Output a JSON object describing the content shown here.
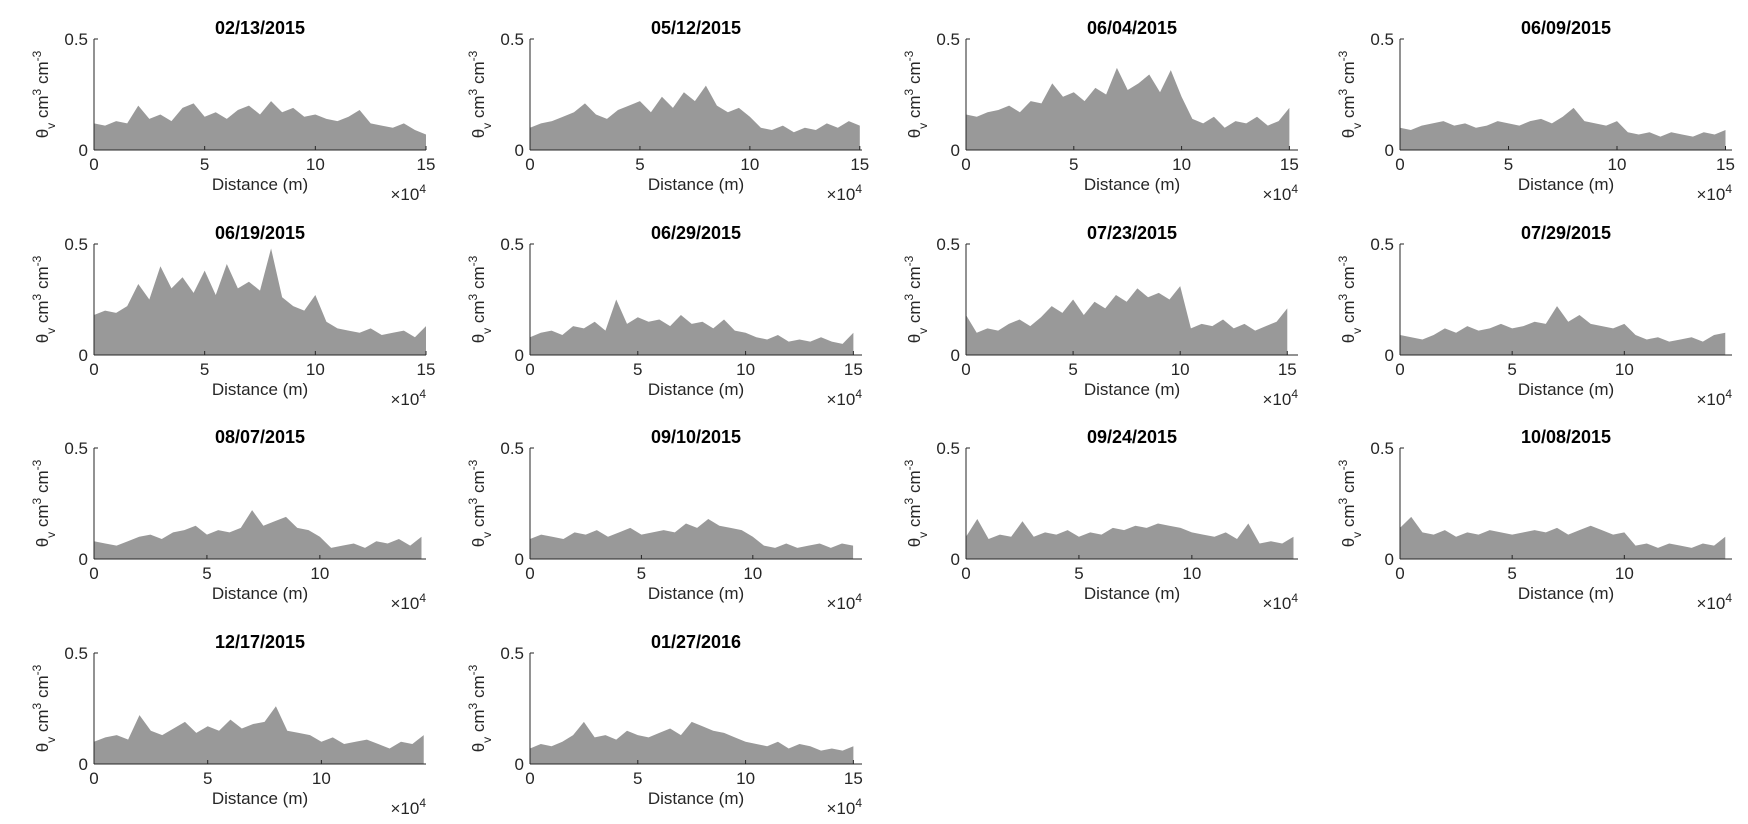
{
  "chart_data": [
    {
      "type": "area",
      "title": "02/13/2015",
      "xlabel": "Distance (m)",
      "ylabel": "θ_v cm^3 cm^{-3}",
      "xaxis_multiplier": "×10^4",
      "color": "#999999",
      "x": [
        0,
        0.5,
        1,
        1.5,
        2,
        2.5,
        3,
        3.5,
        4,
        4.5,
        5,
        5.5,
        6,
        6.5,
        7,
        7.5,
        8,
        8.5,
        9,
        9.5,
        10,
        10.5,
        11,
        11.5,
        12,
        12.5,
        13,
        13.5,
        14,
        14.5,
        15
      ],
      "values": [
        0.12,
        0.11,
        0.13,
        0.12,
        0.2,
        0.14,
        0.16,
        0.13,
        0.19,
        0.21,
        0.15,
        0.17,
        0.14,
        0.18,
        0.2,
        0.16,
        0.22,
        0.17,
        0.19,
        0.15,
        0.16,
        0.14,
        0.13,
        0.15,
        0.18,
        0.12,
        0.11,
        0.1,
        0.12,
        0.09,
        0.07
      ],
      "xlim": [
        0,
        15
      ],
      "xticks": [
        0,
        5,
        10,
        15
      ],
      "ylim": [
        0,
        0.5
      ],
      "yticks": [
        0,
        0.5
      ]
    },
    {
      "type": "area",
      "title": "05/12/2015",
      "xlabel": "Distance (m)",
      "ylabel": "θ_v cm^3 cm^{-3}",
      "xaxis_multiplier": "×10^4",
      "color": "#999999",
      "x": [
        0,
        0.5,
        1,
        1.5,
        2,
        2.5,
        3,
        3.5,
        4,
        4.5,
        5,
        5.5,
        6,
        6.5,
        7,
        7.5,
        8,
        8.5,
        9,
        9.5,
        10,
        10.5,
        11,
        11.5,
        12,
        12.5,
        13,
        13.5,
        14,
        14.5,
        15
      ],
      "values": [
        0.1,
        0.12,
        0.13,
        0.15,
        0.17,
        0.21,
        0.16,
        0.14,
        0.18,
        0.2,
        0.22,
        0.17,
        0.24,
        0.19,
        0.26,
        0.22,
        0.29,
        0.2,
        0.17,
        0.19,
        0.15,
        0.1,
        0.09,
        0.11,
        0.08,
        0.1,
        0.09,
        0.12,
        0.1,
        0.13,
        0.11
      ],
      "xlim": [
        0,
        15.1
      ],
      "xticks": [
        0,
        5,
        10,
        15
      ],
      "ylim": [
        0,
        0.5
      ],
      "yticks": [
        0,
        0.5
      ]
    },
    {
      "type": "area",
      "title": "06/04/2015",
      "xlabel": "Distance (m)",
      "ylabel": "θ_v cm^3 cm^{-3}",
      "xaxis_multiplier": "×10^4",
      "color": "#999999",
      "x": [
        0,
        0.5,
        1,
        1.5,
        2,
        2.5,
        3,
        3.5,
        4,
        4.5,
        5,
        5.5,
        6,
        6.5,
        7,
        7.5,
        8,
        8.5,
        9,
        9.5,
        10,
        10.5,
        11,
        11.5,
        12,
        12.5,
        13,
        13.5,
        14,
        14.5,
        15
      ],
      "values": [
        0.16,
        0.15,
        0.17,
        0.18,
        0.2,
        0.17,
        0.22,
        0.21,
        0.3,
        0.24,
        0.26,
        0.22,
        0.28,
        0.25,
        0.37,
        0.27,
        0.3,
        0.34,
        0.26,
        0.36,
        0.24,
        0.14,
        0.12,
        0.15,
        0.1,
        0.13,
        0.12,
        0.15,
        0.11,
        0.13,
        0.19
      ],
      "xlim": [
        0,
        15.4
      ],
      "xticks": [
        0,
        5,
        10,
        15
      ],
      "ylim": [
        0,
        0.5
      ],
      "yticks": [
        0,
        0.5
      ]
    },
    {
      "type": "area",
      "title": "06/09/2015",
      "xlabel": "Distance (m)",
      "ylabel": "θ_v cm^3 cm^{-3}",
      "xaxis_multiplier": "×10^4",
      "color": "#999999",
      "x": [
        0,
        0.5,
        1,
        1.5,
        2,
        2.5,
        3,
        3.5,
        4,
        4.5,
        5,
        5.5,
        6,
        6.5,
        7,
        7.5,
        8,
        8.5,
        9,
        9.5,
        10,
        10.5,
        11,
        11.5,
        12,
        12.5,
        13,
        13.5,
        14,
        14.5,
        15
      ],
      "values": [
        0.1,
        0.09,
        0.11,
        0.12,
        0.13,
        0.11,
        0.12,
        0.1,
        0.11,
        0.13,
        0.12,
        0.11,
        0.13,
        0.14,
        0.12,
        0.15,
        0.19,
        0.13,
        0.12,
        0.11,
        0.13,
        0.08,
        0.07,
        0.08,
        0.06,
        0.08,
        0.07,
        0.06,
        0.08,
        0.07,
        0.09
      ],
      "xlim": [
        0,
        15.3
      ],
      "xticks": [
        0,
        5,
        10,
        15
      ],
      "ylim": [
        0,
        0.5
      ],
      "yticks": [
        0,
        0.5
      ]
    },
    {
      "type": "area",
      "title": "06/19/2015",
      "xlabel": "Distance (m)",
      "ylabel": "θ_v cm^3 cm^{-3}",
      "xaxis_multiplier": "×10^4",
      "color": "#999999",
      "x": [
        0,
        0.5,
        1,
        1.5,
        2,
        2.5,
        3,
        3.5,
        4,
        4.5,
        5,
        5.5,
        6,
        6.5,
        7,
        7.5,
        8,
        8.5,
        9,
        9.5,
        10,
        10.5,
        11,
        11.5,
        12,
        12.5,
        13,
        13.5,
        14,
        14.5,
        15
      ],
      "values": [
        0.18,
        0.2,
        0.19,
        0.22,
        0.32,
        0.25,
        0.4,
        0.3,
        0.35,
        0.28,
        0.38,
        0.27,
        0.41,
        0.3,
        0.33,
        0.29,
        0.48,
        0.26,
        0.22,
        0.2,
        0.27,
        0.15,
        0.12,
        0.11,
        0.1,
        0.12,
        0.09,
        0.1,
        0.11,
        0.08,
        0.13
      ],
      "xlim": [
        0,
        15
      ],
      "xticks": [
        0,
        5,
        10,
        15
      ],
      "ylim": [
        0,
        0.5
      ],
      "yticks": [
        0,
        0.5
      ]
    },
    {
      "type": "area",
      "title": "06/29/2015",
      "xlabel": "Distance (m)",
      "ylabel": "θ_v cm^3 cm^{-3}",
      "xaxis_multiplier": "×10^4",
      "color": "#999999",
      "x": [
        0,
        0.5,
        1,
        1.5,
        2,
        2.5,
        3,
        3.5,
        4,
        4.5,
        5,
        5.5,
        6,
        6.5,
        7,
        7.5,
        8,
        8.5,
        9,
        9.5,
        10,
        10.5,
        11,
        11.5,
        12,
        12.5,
        13,
        13.5,
        14,
        14.5,
        15
      ],
      "values": [
        0.08,
        0.1,
        0.11,
        0.09,
        0.13,
        0.12,
        0.15,
        0.11,
        0.25,
        0.14,
        0.17,
        0.15,
        0.16,
        0.13,
        0.18,
        0.14,
        0.15,
        0.12,
        0.16,
        0.11,
        0.1,
        0.08,
        0.07,
        0.09,
        0.06,
        0.07,
        0.06,
        0.08,
        0.06,
        0.05,
        0.1
      ],
      "xlim": [
        0,
        15.4
      ],
      "xticks": [
        0,
        5,
        10,
        15
      ],
      "ylim": [
        0,
        0.5
      ],
      "yticks": [
        0,
        0.5
      ]
    },
    {
      "type": "area",
      "title": "07/23/2015",
      "xlabel": "Distance (m)",
      "ylabel": "θ_v cm^3 cm^{-3}",
      "xaxis_multiplier": "×10^4",
      "color": "#999999",
      "x": [
        0,
        0.5,
        1,
        1.5,
        2,
        2.5,
        3,
        3.5,
        4,
        4.5,
        5,
        5.5,
        6,
        6.5,
        7,
        7.5,
        8,
        8.5,
        9,
        9.5,
        10,
        10.5,
        11,
        11.5,
        12,
        12.5,
        13,
        13.5,
        14,
        14.5,
        15
      ],
      "values": [
        0.18,
        0.1,
        0.12,
        0.11,
        0.14,
        0.16,
        0.13,
        0.17,
        0.22,
        0.19,
        0.25,
        0.18,
        0.24,
        0.21,
        0.27,
        0.24,
        0.3,
        0.26,
        0.28,
        0.25,
        0.31,
        0.12,
        0.14,
        0.13,
        0.16,
        0.12,
        0.14,
        0.11,
        0.13,
        0.15,
        0.21
      ],
      "xlim": [
        0,
        15.5
      ],
      "xticks": [
        0,
        5,
        10,
        15
      ],
      "ylim": [
        0,
        0.5
      ],
      "yticks": [
        0,
        0.5
      ]
    },
    {
      "type": "area",
      "title": "07/29/2015",
      "xlabel": "Distance (m)",
      "ylabel": "θ_v cm^3 cm^{-3}",
      "xaxis_multiplier": "×10^4",
      "color": "#999999",
      "x": [
        0,
        0.5,
        1,
        1.5,
        2,
        2.5,
        3,
        3.5,
        4,
        4.5,
        5,
        5.5,
        6,
        6.5,
        7,
        7.5,
        8,
        8.5,
        9,
        9.5,
        10,
        10.5,
        11,
        11.5,
        12,
        12.5,
        13,
        13.5,
        14,
        14.5
      ],
      "values": [
        0.09,
        0.08,
        0.07,
        0.09,
        0.12,
        0.1,
        0.13,
        0.11,
        0.12,
        0.14,
        0.12,
        0.13,
        0.15,
        0.14,
        0.22,
        0.15,
        0.18,
        0.14,
        0.13,
        0.12,
        0.14,
        0.09,
        0.07,
        0.08,
        0.06,
        0.07,
        0.08,
        0.06,
        0.09,
        0.1
      ],
      "xlim": [
        0,
        14.8
      ],
      "xticks": [
        0,
        5,
        10
      ],
      "ylim": [
        0,
        0.5
      ],
      "yticks": [
        0,
        0.5
      ]
    },
    {
      "type": "area",
      "title": "08/07/2015",
      "xlabel": "Distance (m)",
      "ylabel": "θ_v cm^3 cm^{-3}",
      "xaxis_multiplier": "×10^4",
      "color": "#999999",
      "x": [
        0,
        0.5,
        1,
        1.5,
        2,
        2.5,
        3,
        3.5,
        4,
        4.5,
        5,
        5.5,
        6,
        6.5,
        7,
        7.5,
        8,
        8.5,
        9,
        9.5,
        10,
        10.5,
        11,
        11.5,
        12,
        12.5,
        13,
        13.5,
        14,
        14.5
      ],
      "values": [
        0.08,
        0.07,
        0.06,
        0.08,
        0.1,
        0.11,
        0.09,
        0.12,
        0.13,
        0.15,
        0.11,
        0.13,
        0.12,
        0.14,
        0.22,
        0.15,
        0.17,
        0.19,
        0.14,
        0.13,
        0.1,
        0.05,
        0.06,
        0.07,
        0.05,
        0.08,
        0.07,
        0.09,
        0.06,
        0.1
      ],
      "xlim": [
        0,
        14.7
      ],
      "xticks": [
        0,
        5,
        10
      ],
      "ylim": [
        0,
        0.5
      ],
      "yticks": [
        0,
        0.5
      ]
    },
    {
      "type": "area",
      "title": "09/10/2015",
      "xlabel": "Distance (m)",
      "ylabel": "θ_v cm^3 cm^{-3}",
      "xaxis_multiplier": "×10^4",
      "color": "#999999",
      "x": [
        0,
        0.5,
        1,
        1.5,
        2,
        2.5,
        3,
        3.5,
        4,
        4.5,
        5,
        5.5,
        6,
        6.5,
        7,
        7.5,
        8,
        8.5,
        9,
        9.5,
        10,
        10.5,
        11,
        11.5,
        12,
        12.5,
        13,
        13.5,
        14,
        14.5
      ],
      "values": [
        0.09,
        0.11,
        0.1,
        0.09,
        0.12,
        0.11,
        0.13,
        0.1,
        0.12,
        0.14,
        0.11,
        0.12,
        0.13,
        0.12,
        0.16,
        0.14,
        0.18,
        0.15,
        0.14,
        0.13,
        0.1,
        0.06,
        0.05,
        0.07,
        0.05,
        0.06,
        0.07,
        0.05,
        0.07,
        0.06
      ],
      "xlim": [
        0,
        14.9
      ],
      "xticks": [
        0,
        5,
        10
      ],
      "ylim": [
        0,
        0.5
      ],
      "yticks": [
        0,
        0.5
      ]
    },
    {
      "type": "area",
      "title": "09/24/2015",
      "xlabel": "Distance (m)",
      "ylabel": "θ_v cm^3 cm^{-3}",
      "xaxis_multiplier": "×10^4",
      "color": "#999999",
      "x": [
        0,
        0.5,
        1,
        1.5,
        2,
        2.5,
        3,
        3.5,
        4,
        4.5,
        5,
        5.5,
        6,
        6.5,
        7,
        7.5,
        8,
        8.5,
        9,
        9.5,
        10,
        10.5,
        11,
        11.5,
        12,
        12.5,
        13,
        13.5,
        14,
        14.5
      ],
      "values": [
        0.1,
        0.18,
        0.09,
        0.11,
        0.1,
        0.17,
        0.1,
        0.12,
        0.11,
        0.13,
        0.1,
        0.12,
        0.11,
        0.14,
        0.13,
        0.15,
        0.14,
        0.16,
        0.15,
        0.14,
        0.12,
        0.11,
        0.1,
        0.12,
        0.09,
        0.16,
        0.07,
        0.08,
        0.07,
        0.1
      ],
      "xlim": [
        0,
        14.7
      ],
      "xticks": [
        0,
        5,
        10
      ],
      "ylim": [
        0,
        0.5
      ],
      "yticks": [
        0,
        0.5
      ]
    },
    {
      "type": "area",
      "title": "10/08/2015",
      "xlabel": "Distance (m)",
      "ylabel": "θ_v cm^3 cm^{-3}",
      "xaxis_multiplier": "×10^4",
      "color": "#999999",
      "x": [
        0,
        0.5,
        1,
        1.5,
        2,
        2.5,
        3,
        3.5,
        4,
        4.5,
        5,
        5.5,
        6,
        6.5,
        7,
        7.5,
        8,
        8.5,
        9,
        9.5,
        10,
        10.5,
        11,
        11.5,
        12,
        12.5,
        13,
        13.5,
        14,
        14.5
      ],
      "values": [
        0.14,
        0.19,
        0.12,
        0.11,
        0.13,
        0.1,
        0.12,
        0.11,
        0.13,
        0.12,
        0.11,
        0.12,
        0.13,
        0.12,
        0.14,
        0.11,
        0.13,
        0.15,
        0.13,
        0.11,
        0.12,
        0.06,
        0.07,
        0.05,
        0.07,
        0.06,
        0.05,
        0.07,
        0.06,
        0.1
      ],
      "xlim": [
        0,
        14.8
      ],
      "xticks": [
        0,
        5,
        10
      ],
      "ylim": [
        0,
        0.5
      ],
      "yticks": [
        0,
        0.5
      ]
    },
    {
      "type": "area",
      "title": "12/17/2015",
      "xlabel": "Distance (m)",
      "ylabel": "θ_v cm^3 cm^{-3}",
      "xaxis_multiplier": "×10^4",
      "color": "#999999",
      "x": [
        0,
        0.5,
        1,
        1.5,
        2,
        2.5,
        3,
        3.5,
        4,
        4.5,
        5,
        5.5,
        6,
        6.5,
        7,
        7.5,
        8,
        8.5,
        9,
        9.5,
        10,
        10.5,
        11,
        11.5,
        12,
        12.5,
        13,
        13.5,
        14,
        14.5
      ],
      "values": [
        0.1,
        0.12,
        0.13,
        0.11,
        0.22,
        0.15,
        0.13,
        0.16,
        0.19,
        0.14,
        0.17,
        0.15,
        0.2,
        0.16,
        0.18,
        0.19,
        0.26,
        0.15,
        0.14,
        0.13,
        0.1,
        0.12,
        0.09,
        0.1,
        0.11,
        0.09,
        0.07,
        0.1,
        0.09,
        0.13
      ],
      "xlim": [
        0,
        14.6
      ],
      "xticks": [
        0,
        5,
        10
      ],
      "ylim": [
        0,
        0.5
      ],
      "yticks": [
        0,
        0.5
      ]
    },
    {
      "type": "area",
      "title": "01/27/2016",
      "xlabel": "Distance (m)",
      "ylabel": "θ_v cm^3 cm^{-3}",
      "xaxis_multiplier": "×10^4",
      "color": "#999999",
      "x": [
        0,
        0.5,
        1,
        1.5,
        2,
        2.5,
        3,
        3.5,
        4,
        4.5,
        5,
        5.5,
        6,
        6.5,
        7,
        7.5,
        8,
        8.5,
        9,
        9.5,
        10,
        10.5,
        11,
        11.5,
        12,
        12.5,
        13,
        13.5,
        14,
        14.5,
        15
      ],
      "values": [
        0.07,
        0.09,
        0.08,
        0.1,
        0.13,
        0.19,
        0.12,
        0.13,
        0.11,
        0.15,
        0.13,
        0.12,
        0.14,
        0.16,
        0.13,
        0.19,
        0.17,
        0.15,
        0.14,
        0.12,
        0.1,
        0.09,
        0.08,
        0.1,
        0.07,
        0.09,
        0.08,
        0.06,
        0.07,
        0.06,
        0.08
      ],
      "xlim": [
        0,
        15.4
      ],
      "xticks": [
        0,
        5,
        10,
        15
      ],
      "ylim": [
        0,
        0.5
      ],
      "yticks": [
        0,
        0.5
      ]
    }
  ]
}
